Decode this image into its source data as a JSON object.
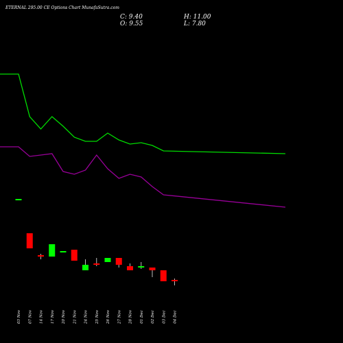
{
  "header": {
    "title": "ETERNAL 295.00 CE Options Chart MunafaSutra.com",
    "close": "C: 9.40",
    "high": "H: 11.00",
    "open": "O: 9.55",
    "low": "L: 7.80"
  },
  "colors": {
    "background": "#000000",
    "up": "#00ff00",
    "down": "#ff0000",
    "ma_green": "#00dd00",
    "ma_purple": "#990099"
  },
  "chart_data": {
    "type": "candlestick",
    "categories": [
      "03 Nov",
      "07 Nov",
      "14 Nov",
      "17 Nov",
      "20 Nov",
      "21 Nov",
      "24 Nov",
      "25 Nov",
      "26 Nov",
      "27 Nov",
      "28 Nov",
      "01 Dec",
      "02 Dec",
      "03 Dec",
      "04 Dec"
    ],
    "candles": [
      {
        "x": "03 Nov",
        "open": 20.5,
        "high": 20.5,
        "low": 20.5,
        "close": 20.5
      },
      {
        "x": "07 Nov",
        "open": 18.0,
        "high": 18.0,
        "low": 16.9,
        "close": 16.9
      },
      {
        "x": "14 Nov",
        "open": 16.4,
        "high": 16.5,
        "low": 16.1,
        "close": 16.3
      },
      {
        "x": "17 Nov",
        "open": 16.3,
        "high": 17.2,
        "low": 16.3,
        "close": 17.2
      },
      {
        "x": "20 Nov",
        "open": 16.6,
        "high": 16.7,
        "low": 16.6,
        "close": 16.7
      },
      {
        "x": "21 Nov",
        "open": 16.8,
        "high": 16.8,
        "low": 16.0,
        "close": 16.0
      },
      {
        "x": "24 Nov",
        "open": 15.3,
        "high": 16.1,
        "low": 15.3,
        "close": 15.7
      },
      {
        "x": "25 Nov",
        "open": 15.8,
        "high": 16.2,
        "low": 15.6,
        "close": 15.7
      },
      {
        "x": "26 Nov",
        "open": 15.9,
        "high": 16.2,
        "low": 15.9,
        "close": 16.2
      },
      {
        "x": "27 Nov",
        "open": 16.2,
        "high": 16.2,
        "low": 15.5,
        "close": 15.7
      },
      {
        "x": "28 Nov",
        "open": 15.6,
        "high": 15.8,
        "low": 15.3,
        "close": 15.3
      },
      {
        "x": "01 Dec",
        "open": 15.5,
        "high": 15.9,
        "low": 15.4,
        "close": 15.6
      },
      {
        "x": "02 Dec",
        "open": 15.5,
        "high": 15.5,
        "low": 14.8,
        "close": 15.3
      },
      {
        "x": "03 Dec",
        "open": 15.3,
        "high": 15.3,
        "low": 14.5,
        "close": 14.5
      },
      {
        "x": "04 Dec",
        "open": 14.6,
        "high": 14.7,
        "low": 14.2,
        "close": 14.5
      }
    ],
    "series": [
      {
        "x": [
          0,
          1,
          2,
          3,
          4,
          5,
          6,
          7,
          8,
          9,
          10,
          11,
          12,
          13,
          14,
          15
        ],
        "values": [
          29.6,
          29.6,
          26.5,
          25.6,
          26.5,
          25.8,
          25.0,
          24.7,
          24.7,
          25.3,
          24.8,
          24.5,
          24.6,
          24.4,
          24.0,
          23.8
        ],
        "color": "#00dd00"
      },
      {
        "x": [
          0,
          1,
          2,
          3,
          4,
          5,
          6,
          7,
          8,
          9,
          10,
          11,
          12,
          13,
          14,
          15
        ],
        "values": [
          24.3,
          24.3,
          23.6,
          23.7,
          23.8,
          22.5,
          22.3,
          22.6,
          23.7,
          22.7,
          22.0,
          22.3,
          22.1,
          21.4,
          20.8,
          19.9
        ],
        "color": "#990099"
      }
    ],
    "ylim": [
      11.0,
      32.0
    ],
    "grid": false,
    "legend": false
  }
}
